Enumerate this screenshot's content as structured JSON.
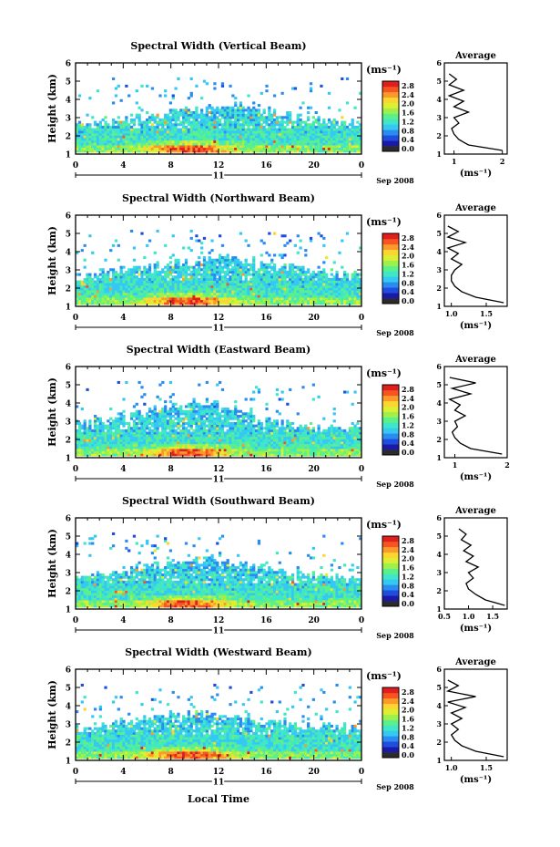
{
  "figure": {
    "xlabel": "Local Time",
    "date_label": "Sep 2008",
    "day_label": "11",
    "unit_label": "(ms⁻¹)",
    "avg_title": "Average",
    "colorbar": {
      "ticks": [
        "0.0",
        "0.4",
        "0.8",
        "1.2",
        "1.6",
        "2.0",
        "2.4",
        "2.8"
      ],
      "colors": [
        "#2b2b2b",
        "#1a1aa6",
        "#1f4de0",
        "#2b8cf0",
        "#35c8f2",
        "#40e6c8",
        "#5cf08a",
        "#9ff04a",
        "#dcef33",
        "#fbd530",
        "#fb9a2a",
        "#f65522",
        "#e01e1e"
      ]
    }
  },
  "chart_data": [
    {
      "type": "heatmap",
      "title": "Spectral Width (Vertical Beam)",
      "ylabel": "Height (km)",
      "x_ticks": [
        "0",
        "4",
        "8",
        "12",
        "16",
        "20",
        "0"
      ],
      "xlim": [
        0,
        24
      ],
      "y_ticks": [
        "1",
        "2",
        "3",
        "4",
        "5",
        "6"
      ],
      "ylim": [
        1,
        6
      ],
      "top_height_profile_km": [
        2.6,
        2.7,
        2.8,
        3.0,
        3.1,
        3.2,
        3.4,
        3.5,
        3.6,
        3.5,
        3.3,
        3.1,
        3.0,
        2.8,
        2.7,
        2.7
      ],
      "average": {
        "ylim": [
          1,
          6
        ],
        "xlim": [
          0.8,
          2.1
        ],
        "x_ticks": [
          "1",
          "2"
        ],
        "heights_km": [
          1.2,
          1.5,
          1.8,
          2.1,
          2.4,
          2.7,
          3.0,
          3.3,
          3.6,
          3.9,
          4.2,
          4.5,
          4.8,
          5.1,
          5.4
        ],
        "values": [
          2.0,
          1.3,
          1.1,
          1.0,
          0.95,
          1.1,
          1.0,
          1.3,
          1.0,
          1.2,
          0.9,
          1.2,
          0.9,
          1.05,
          0.9
        ]
      }
    },
    {
      "type": "heatmap",
      "title": "Spectral Width (Northward Beam)",
      "ylabel": "Height (km)",
      "x_ticks": [
        "0",
        "4",
        "8",
        "12",
        "16",
        "20",
        "0"
      ],
      "xlim": [
        0,
        24
      ],
      "y_ticks": [
        "1",
        "2",
        "3",
        "4",
        "5",
        "6"
      ],
      "ylim": [
        1,
        6
      ],
      "top_height_profile_km": [
        2.6,
        2.8,
        3.0,
        3.0,
        3.1,
        3.3,
        3.4,
        3.5,
        3.6,
        3.5,
        3.3,
        3.1,
        3.0,
        2.9,
        2.7,
        2.6
      ],
      "average": {
        "ylim": [
          1,
          6
        ],
        "xlim": [
          0.9,
          1.8
        ],
        "x_ticks": [
          "1.0",
          "1.5"
        ],
        "heights_km": [
          1.2,
          1.5,
          1.8,
          2.1,
          2.4,
          2.7,
          3.0,
          3.3,
          3.6,
          3.9,
          4.2,
          4.5,
          4.8,
          5.1,
          5.4
        ],
        "values": [
          1.75,
          1.35,
          1.15,
          1.05,
          1.0,
          1.0,
          1.05,
          1.15,
          1.0,
          1.1,
          0.95,
          1.2,
          0.95,
          1.1,
          0.95
        ]
      }
    },
    {
      "type": "heatmap",
      "title": "Spectral Width (Eastward Beam)",
      "ylabel": "Height (km)",
      "x_ticks": [
        "0",
        "4",
        "8",
        "12",
        "16",
        "20",
        "0"
      ],
      "xlim": [
        0,
        24
      ],
      "y_ticks": [
        "1",
        "2",
        "3",
        "4",
        "5",
        "6"
      ],
      "ylim": [
        1,
        6
      ],
      "top_height_profile_km": [
        2.8,
        3.0,
        3.2,
        3.4,
        3.6,
        3.8,
        4.0,
        3.9,
        3.7,
        3.4,
        3.0,
        2.8,
        2.7,
        2.6,
        2.6,
        2.6
      ],
      "average": {
        "ylim": [
          1,
          6
        ],
        "xlim": [
          0.8,
          2.0
        ],
        "x_ticks": [
          "1",
          "2"
        ],
        "heights_km": [
          1.2,
          1.5,
          1.8,
          2.1,
          2.4,
          2.7,
          3.0,
          3.3,
          3.6,
          3.9,
          4.2,
          4.5,
          4.8,
          5.1,
          5.4
        ],
        "values": [
          1.9,
          1.3,
          1.1,
          1.0,
          0.95,
          1.05,
          1.0,
          1.2,
          1.0,
          1.1,
          0.9,
          1.3,
          0.95,
          1.4,
          0.9
        ]
      }
    },
    {
      "type": "heatmap",
      "title": "Spectral Width (Southward Beam)",
      "ylabel": "Height (km)",
      "x_ticks": [
        "0",
        "4",
        "8",
        "12",
        "16",
        "20",
        "0"
      ],
      "xlim": [
        0,
        24
      ],
      "y_ticks": [
        "1",
        "2",
        "3",
        "4",
        "5",
        "6"
      ],
      "ylim": [
        1,
        6
      ],
      "top_height_profile_km": [
        2.7,
        2.8,
        3.0,
        3.3,
        3.4,
        3.5,
        3.6,
        3.7,
        3.5,
        3.4,
        3.2,
        3.0,
        2.9,
        2.8,
        2.7,
        2.6
      ],
      "average": {
        "ylim": [
          1,
          6
        ],
        "xlim": [
          0.5,
          1.8
        ],
        "x_ticks": [
          "0.5",
          "1.0",
          "1.5"
        ],
        "heights_km": [
          1.2,
          1.5,
          1.8,
          2.1,
          2.4,
          2.7,
          3.0,
          3.3,
          3.6,
          3.9,
          4.2,
          4.5,
          4.8,
          5.1,
          5.4
        ],
        "values": [
          1.75,
          1.35,
          1.15,
          1.0,
          0.95,
          1.1,
          1.0,
          1.2,
          0.95,
          1.1,
          0.9,
          1.05,
          0.85,
          0.95,
          0.8
        ]
      }
    },
    {
      "type": "heatmap",
      "title": "Spectral Width (Westward Beam)",
      "ylabel": "Height (km)",
      "x_ticks": [
        "0",
        "4",
        "8",
        "12",
        "16",
        "20",
        "0"
      ],
      "xlim": [
        0,
        24
      ],
      "y_ticks": [
        "1",
        "2",
        "3",
        "4",
        "5",
        "6"
      ],
      "ylim": [
        1,
        6
      ],
      "top_height_profile_km": [
        2.7,
        2.9,
        3.1,
        3.2,
        3.3,
        3.4,
        3.5,
        3.5,
        3.4,
        3.3,
        3.1,
        3.0,
        2.9,
        2.8,
        2.8,
        2.7
      ],
      "average": {
        "ylim": [
          1,
          6
        ],
        "xlim": [
          0.9,
          1.8
        ],
        "x_ticks": [
          "1.0",
          "1.5"
        ],
        "heights_km": [
          1.2,
          1.5,
          1.8,
          2.1,
          2.4,
          2.7,
          3.0,
          3.3,
          3.6,
          3.9,
          4.2,
          4.5,
          4.8,
          5.1,
          5.4
        ],
        "values": [
          1.75,
          1.35,
          1.15,
          1.05,
          1.0,
          1.1,
          1.0,
          1.15,
          1.0,
          1.2,
          0.95,
          1.35,
          0.95,
          1.1,
          0.95
        ]
      }
    }
  ]
}
